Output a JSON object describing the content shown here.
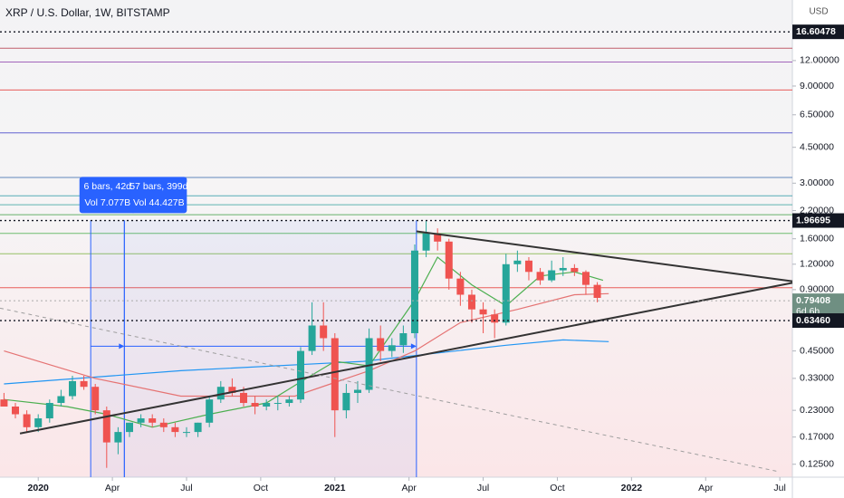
{
  "chart_data": {
    "type": "candlestick",
    "title": "XRP / U.S. Dollar, 1W, BITSTAMP",
    "currency": "USD",
    "log_scale": true,
    "x": [
      -6,
      -4,
      -2,
      0,
      2,
      4,
      6,
      8,
      10,
      12,
      14,
      16,
      18,
      20,
      22,
      24,
      26,
      28,
      30,
      32,
      34,
      36,
      38,
      40,
      42,
      44,
      46,
      48,
      50,
      52,
      54,
      56,
      58,
      60,
      62,
      64,
      66,
      68,
      70,
      72,
      74,
      76,
      78,
      80,
      82,
      84,
      86,
      88,
      90,
      92,
      94,
      96,
      98
    ],
    "open": [
      0.26,
      0.24,
      0.22,
      0.19,
      0.21,
      0.25,
      0.27,
      0.32,
      0.3,
      0.23,
      0.16,
      0.18,
      0.2,
      0.21,
      0.2,
      0.19,
      0.18,
      0.18,
      0.2,
      0.26,
      0.3,
      0.28,
      0.25,
      0.24,
      0.25,
      0.25,
      0.26,
      0.45,
      0.6,
      0.52,
      0.23,
      0.28,
      0.29,
      0.52,
      0.45,
      0.48,
      0.55,
      1.4,
      1.7,
      1.55,
      1.02,
      0.85,
      0.72,
      0.68,
      0.62,
      1.2,
      1.25,
      1.1,
      1.0,
      1.12,
      1.15,
      1.1,
      0.95
    ],
    "high": [
      0.28,
      0.25,
      0.23,
      0.22,
      0.26,
      0.29,
      0.34,
      0.34,
      0.31,
      0.24,
      0.19,
      0.2,
      0.22,
      0.22,
      0.21,
      0.2,
      0.19,
      0.2,
      0.27,
      0.32,
      0.33,
      0.3,
      0.27,
      0.26,
      0.27,
      0.27,
      0.47,
      0.78,
      0.78,
      0.55,
      0.31,
      0.32,
      0.58,
      0.6,
      0.52,
      0.6,
      1.5,
      1.96,
      1.8,
      1.6,
      1.1,
      0.9,
      0.78,
      0.72,
      1.35,
      1.4,
      1.3,
      1.15,
      1.25,
      1.3,
      1.2,
      1.12,
      0.98
    ],
    "low": [
      0.24,
      0.21,
      0.18,
      0.18,
      0.2,
      0.24,
      0.26,
      0.29,
      0.22,
      0.12,
      0.14,
      0.17,
      0.19,
      0.19,
      0.18,
      0.17,
      0.17,
      0.17,
      0.19,
      0.25,
      0.27,
      0.24,
      0.22,
      0.23,
      0.23,
      0.24,
      0.25,
      0.43,
      0.45,
      0.17,
      0.21,
      0.25,
      0.28,
      0.4,
      0.42,
      0.44,
      0.52,
      1.3,
      1.4,
      0.9,
      0.75,
      0.62,
      0.55,
      0.52,
      0.6,
      1.1,
      1.0,
      0.95,
      0.98,
      1.05,
      1.05,
      0.85,
      0.78
    ],
    "close": [
      0.24,
      0.22,
      0.19,
      0.21,
      0.25,
      0.27,
      0.32,
      0.3,
      0.23,
      0.16,
      0.18,
      0.2,
      0.21,
      0.2,
      0.19,
      0.18,
      0.18,
      0.2,
      0.26,
      0.3,
      0.28,
      0.25,
      0.24,
      0.25,
      0.25,
      0.26,
      0.45,
      0.6,
      0.52,
      0.23,
      0.28,
      0.29,
      0.52,
      0.45,
      0.48,
      0.55,
      1.4,
      1.7,
      1.55,
      1.02,
      0.85,
      0.72,
      0.68,
      0.62,
      1.2,
      1.25,
      1.1,
      1.0,
      1.12,
      1.15,
      1.1,
      0.95,
      0.82
    ],
    "up_color": "#26a69a",
    "down_color": "#ef5350",
    "xlim": [
      -6.7,
      132.2
    ],
    "ylim": [
      0.108,
      23.8
    ],
    "xticks": [
      {
        "value": 0,
        "label": "2020"
      },
      {
        "value": 13,
        "label": "Apr"
      },
      {
        "value": 26,
        "label": "Jul"
      },
      {
        "value": 39,
        "label": "Oct"
      },
      {
        "value": 52,
        "label": "2021"
      },
      {
        "value": 65,
        "label": "Apr"
      },
      {
        "value": 78,
        "label": "Jul"
      },
      {
        "value": 91,
        "label": "Oct"
      },
      {
        "value": 104,
        "label": "2022"
      },
      {
        "value": 117,
        "label": "Apr"
      },
      {
        "value": 130,
        "label": "Jul"
      }
    ],
    "yticks": [
      {
        "value": 12,
        "label": "12.00000"
      },
      {
        "value": 9,
        "label": "9.00000"
      },
      {
        "value": 6.5,
        "label": "6.50000"
      },
      {
        "value": 4.5,
        "label": "4.50000"
      },
      {
        "value": 3,
        "label": "3.00000"
      },
      {
        "value": 2.2,
        "label": "2.20000"
      },
      {
        "value": 1.6,
        "label": "1.60000"
      },
      {
        "value": 1.2,
        "label": "1.20000"
      },
      {
        "value": 0.9,
        "label": "0.90000"
      },
      {
        "value": 0.45,
        "label": "0.45000"
      },
      {
        "value": 0.33,
        "label": "0.33000"
      },
      {
        "value": 0.23,
        "label": "0.23000"
      },
      {
        "value": 0.17,
        "label": "0.17000"
      },
      {
        "value": 0.125,
        "label": "0.12500"
      }
    ],
    "price_labels": [
      {
        "value": 16.60478,
        "label": "16.60478",
        "color": "#131722"
      },
      {
        "value": 1.96695,
        "label": "1.96695",
        "color": "#131722"
      },
      {
        "value": 0.79408,
        "label": "0.79408",
        "color": "#6f8f82",
        "countdown": "6d 6h"
      },
      {
        "value": 0.6346,
        "label": "0.63460",
        "color": "#131722"
      }
    ],
    "levels": [
      {
        "value": 13.8,
        "color": "#b5394a"
      },
      {
        "value": 11.8,
        "color": "#8e44ad"
      },
      {
        "value": 8.6,
        "color": "#e53935"
      },
      {
        "value": 5.3,
        "color": "#3f3fc8"
      },
      {
        "value": 3.2,
        "color": "#3f6fb0"
      },
      {
        "value": 2.6,
        "color": "#2e9aa8"
      },
      {
        "value": 2.35,
        "color": "#3aa5a0"
      },
      {
        "value": 2.1,
        "color": "#43a047"
      },
      {
        "value": 1.7,
        "color": "#4caf50"
      },
      {
        "value": 1.35,
        "color": "#7cb342"
      },
      {
        "value": 0.92,
        "color": "#e53935"
      }
    ],
    "trendlines": [
      {
        "x": [
          66.3,
          132.2
        ],
        "y": [
          1.74,
          0.99
        ],
        "color": "#333333"
      },
      {
        "x": [
          -3.2,
          132.2
        ],
        "y": [
          0.177,
          0.972
        ],
        "color": "#333333"
      },
      {
        "x": [
          -6.7,
          129.8
        ],
        "y": [
          0.73,
          0.115
        ],
        "color": "#9e9e9e",
        "dashed": true
      }
    ],
    "averages": [
      {
        "x": [
          -6,
          25,
          57,
          82,
          92,
          100
        ],
        "values": [
          0.31,
          0.36,
          0.4,
          0.48,
          0.51,
          0.5
        ],
        "color": "#2196f3"
      },
      {
        "x": [
          -6,
          10,
          25,
          45,
          58,
          66,
          74,
          84,
          94,
          100
        ],
        "values": [
          0.45,
          0.33,
          0.27,
          0.27,
          0.36,
          0.45,
          0.62,
          0.72,
          0.85,
          0.86
        ],
        "color": "#e57373"
      },
      {
        "x": [
          -6,
          5,
          12,
          20,
          30,
          40,
          47,
          52,
          58,
          66,
          70,
          76,
          82,
          88,
          94,
          99
        ],
        "values": [
          0.26,
          0.24,
          0.22,
          0.19,
          0.22,
          0.25,
          0.33,
          0.4,
          0.38,
          0.8,
          1.3,
          0.95,
          0.75,
          1.05,
          1.1,
          1.0
        ],
        "color": "#4caf50"
      }
    ],
    "measures": [
      {
        "lines": [
          "6 bars, 42d",
          "Vol 7.077B"
        ],
        "x": [
          9.2,
          15.1
        ],
        "top": 1.97,
        "arrow": 0.475
      },
      {
        "lines": [
          "57 bars, 399d",
          "Vol 44.427B"
        ],
        "x": [
          15.1,
          66.3
        ],
        "top": 1.97,
        "arrow": 0.475
      }
    ]
  }
}
